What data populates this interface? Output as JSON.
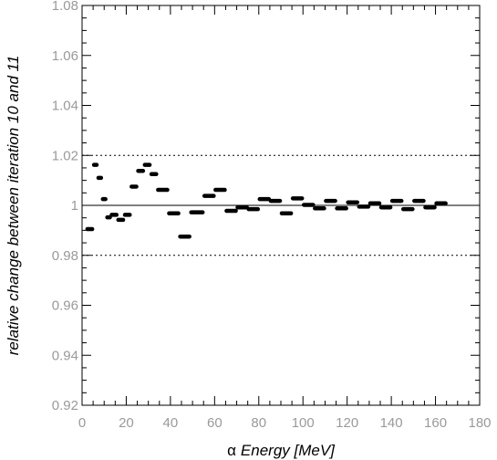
{
  "chart_data": {
    "type": "scatter",
    "title": "",
    "xlabel_prefix": "α",
    "xlabel": "Energy [MeV]",
    "ylabel": "relative change between iteration 10 and 11",
    "xlim": [
      0,
      180
    ],
    "ylim": [
      0.92,
      1.08
    ],
    "xticks": [
      "0",
      "20",
      "40",
      "60",
      "80",
      "100",
      "120",
      "140",
      "160",
      "180"
    ],
    "yticks": [
      "0.92",
      "0.94",
      "0.96",
      "0.98",
      "1",
      "1.02",
      "1.04",
      "1.06",
      "1.08"
    ],
    "grid": false,
    "reference_lines": {
      "solid": 1.0,
      "dashed": [
        0.98,
        1.02
      ]
    },
    "series": [
      {
        "points": [
          {
            "x0": 2,
            "x1": 5,
            "y": 0.9905
          },
          {
            "x0": 5,
            "x1": 7,
            "y": 1.0162
          },
          {
            "x0": 7,
            "x1": 9,
            "y": 1.011
          },
          {
            "x0": 9,
            "x1": 11,
            "y": 1.0025
          },
          {
            "x0": 11,
            "x1": 13,
            "y": 0.9952
          },
          {
            "x0": 13,
            "x1": 16,
            "y": 0.9962
          },
          {
            "x0": 16,
            "x1": 19,
            "y": 0.9942
          },
          {
            "x0": 19,
            "x1": 22,
            "y": 0.9962
          },
          {
            "x0": 22,
            "x1": 25,
            "y": 1.0075
          },
          {
            "x0": 25,
            "x1": 28,
            "y": 1.0138
          },
          {
            "x0": 28,
            "x1": 31,
            "y": 1.0162
          },
          {
            "x0": 31,
            "x1": 34,
            "y": 1.0125
          },
          {
            "x0": 34,
            "x1": 39,
            "y": 1.0062
          },
          {
            "x0": 39,
            "x1": 44,
            "y": 0.9968
          },
          {
            "x0": 44,
            "x1": 49,
            "y": 0.9875
          },
          {
            "x0": 49,
            "x1": 55,
            "y": 0.9972
          },
          {
            "x0": 55,
            "x1": 60,
            "y": 1.0038
          },
          {
            "x0": 60,
            "x1": 65,
            "y": 1.0062
          },
          {
            "x0": 65,
            "x1": 70,
            "y": 0.9978
          },
          {
            "x0": 70,
            "x1": 75,
            "y": 0.9992
          },
          {
            "x0": 75,
            "x1": 80,
            "y": 0.9985
          },
          {
            "x0": 80,
            "x1": 85,
            "y": 1.0025
          },
          {
            "x0": 85,
            "x1": 90,
            "y": 1.0018
          },
          {
            "x0": 90,
            "x1": 95,
            "y": 0.9968
          },
          {
            "x0": 95,
            "x1": 100,
            "y": 1.0028
          },
          {
            "x0": 100,
            "x1": 105,
            "y": 1.0002
          },
          {
            "x0": 105,
            "x1": 110,
            "y": 0.9988
          },
          {
            "x0": 110,
            "x1": 115,
            "y": 1.0018
          },
          {
            "x0": 115,
            "x1": 120,
            "y": 0.9988
          },
          {
            "x0": 120,
            "x1": 125,
            "y": 1.0012
          },
          {
            "x0": 125,
            "x1": 130,
            "y": 0.9995
          },
          {
            "x0": 130,
            "x1": 135,
            "y": 1.0008
          },
          {
            "x0": 135,
            "x1": 140,
            "y": 0.9992
          },
          {
            "x0": 140,
            "x1": 145,
            "y": 1.0018
          },
          {
            "x0": 145,
            "x1": 150,
            "y": 0.9985
          },
          {
            "x0": 150,
            "x1": 155,
            "y": 1.0018
          },
          {
            "x0": 155,
            "x1": 160,
            "y": 0.9992
          },
          {
            "x0": 160,
            "x1": 165,
            "y": 1.0008
          }
        ]
      }
    ]
  }
}
